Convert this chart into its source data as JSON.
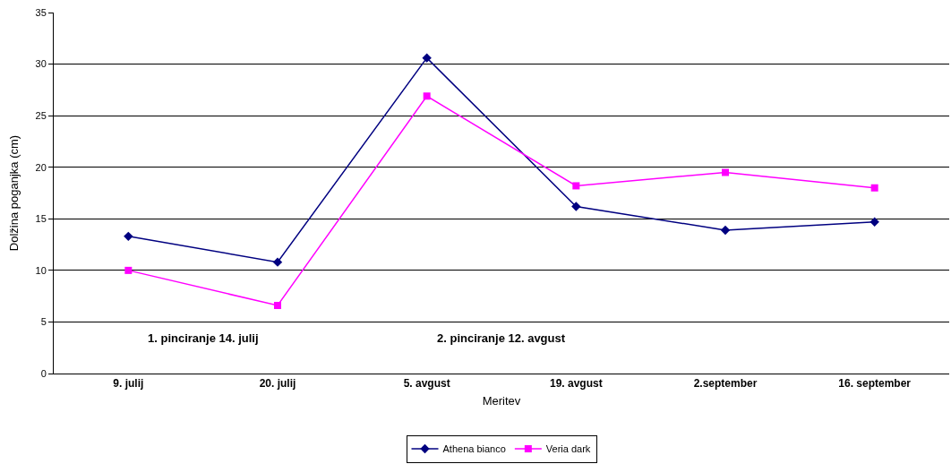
{
  "chart_data": {
    "type": "line",
    "xlabel": "Meritev",
    "ylabel": "Dolžina poganjka (cm)",
    "categories": [
      "9. julij",
      "20. julij",
      "5. avgust",
      "19. avgust",
      "2.september",
      "16. september"
    ],
    "series": [
      {
        "name": "Athena bianco",
        "color": "#000080",
        "marker": "diamond",
        "values": [
          13.3,
          10.8,
          30.6,
          16.2,
          13.9,
          14.7
        ]
      },
      {
        "name": "Veria dark",
        "color": "#ff00ff",
        "marker": "square",
        "values": [
          10.0,
          6.6,
          26.9,
          18.2,
          19.5,
          18.0
        ]
      }
    ],
    "ylim": [
      0,
      35
    ],
    "yticks": [
      0,
      5,
      10,
      15,
      20,
      25,
      30,
      35
    ],
    "grid": "y",
    "legend": "bottom",
    "annotations": [
      "1. pinciranje 14. julij",
      "2. pinciranje 12. avgust"
    ]
  }
}
